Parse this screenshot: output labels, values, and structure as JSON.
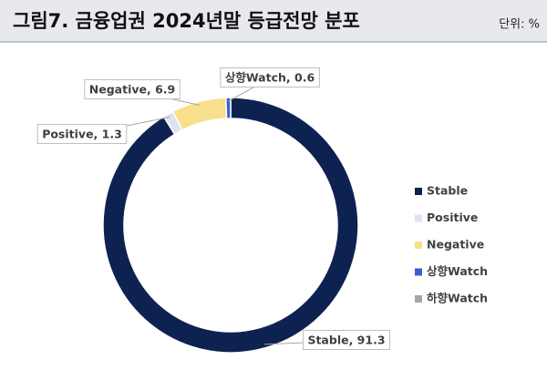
{
  "chart_data": {
    "type": "donut",
    "title": "그림7. 금융업권 2024년말 등급전망 분포",
    "unit_note": "단위: %",
    "categories": [
      "Stable",
      "Positive",
      "Negative",
      "상향Watch",
      "하향Watch"
    ],
    "values": [
      91.3,
      1.3,
      6.9,
      0.6,
      0
    ],
    "value_labels": [
      "Stable, 91.3",
      "Positive, 1.3",
      "Negative, 6.9",
      "상향Watch, 0.6",
      null
    ],
    "colors": [
      "#0e2252",
      "#dbe4f2",
      "#f7df8c",
      "#3a5fcd",
      "#a6a6a6"
    ],
    "legend": "right"
  }
}
